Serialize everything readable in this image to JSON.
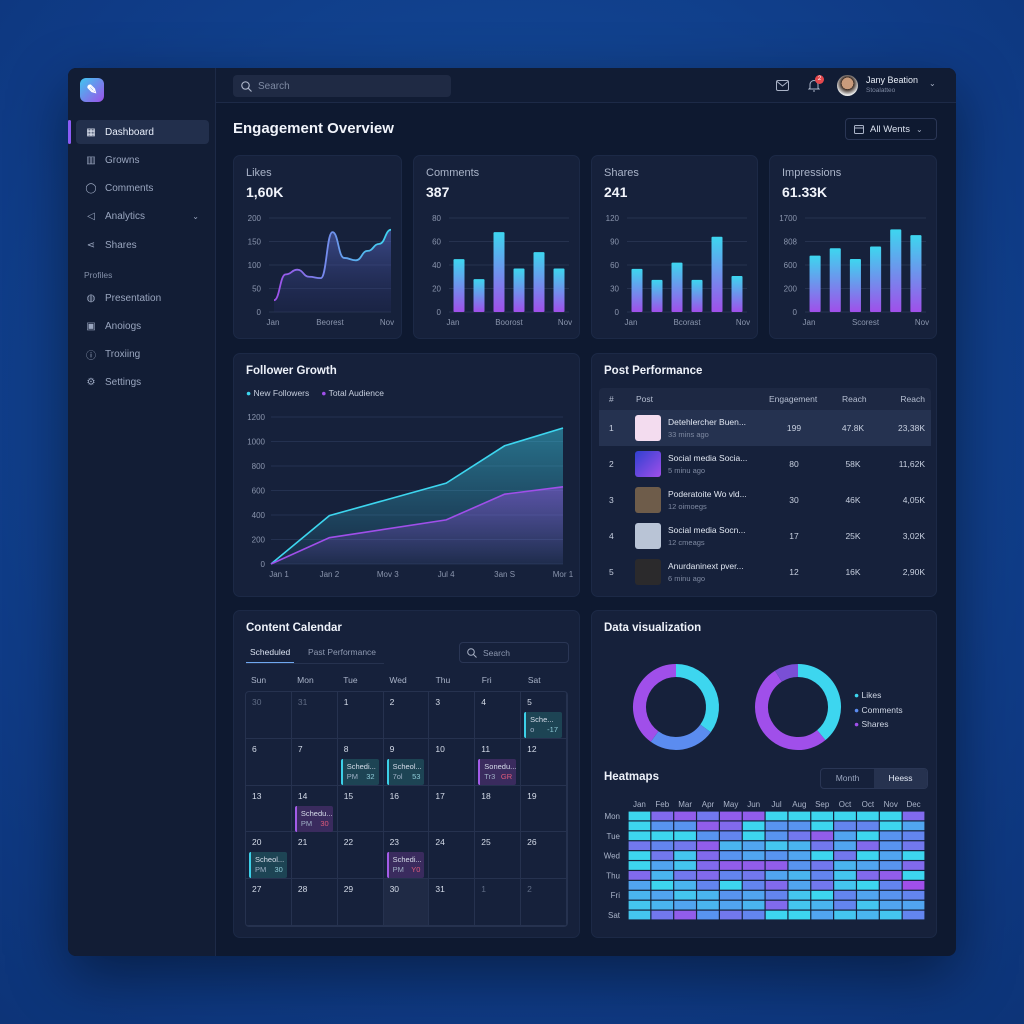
{
  "colors": {
    "cyan": "#3dd6ef",
    "blue": "#5b8cf0",
    "purple": "#a04fea",
    "accent": "#8b5cf6",
    "badge": "#e5484d"
  },
  "sidebar": {
    "logo_icon": "feather-icon",
    "items": [
      {
        "label": "Dashboard",
        "icon": "grid-icon",
        "active": true
      },
      {
        "label": "Growns",
        "icon": "bar-chart-icon"
      },
      {
        "label": "Comments",
        "icon": "chat-bubble-icon"
      },
      {
        "label": "Analytics",
        "icon": "megaphone-icon",
        "has_chevron": true
      },
      {
        "label": "Shares",
        "icon": "share-icon"
      }
    ],
    "section_label": "Profiles",
    "profile_items": [
      {
        "label": "Presentation",
        "icon": "globe-icon"
      },
      {
        "label": "Anoiogs",
        "icon": "image-icon"
      },
      {
        "label": "Troxiing",
        "icon": "info-icon"
      },
      {
        "label": "Settings",
        "icon": "gear-icon"
      }
    ]
  },
  "topbar": {
    "search_placeholder": "Search",
    "notification_count": "2",
    "user_name": "Jany Beation",
    "user_role": "Stoalatteo"
  },
  "page": {
    "title": "Engagement Overview",
    "filter_label": "All Wents"
  },
  "kpis": [
    {
      "label": "Likes",
      "value": "1,60K",
      "chart": {
        "type": "area",
        "ylim": [
          0,
          200
        ],
        "yticks": [
          "0",
          "50",
          "100",
          "150",
          "200"
        ],
        "xticks": [
          "Jan",
          "Beorest",
          "Nov"
        ],
        "values": [
          25,
          80,
          90,
          75,
          72,
          170,
          115,
          110,
          130,
          145,
          175
        ]
      }
    },
    {
      "label": "Comments",
      "value": "387",
      "chart": {
        "type": "bar",
        "ylim": [
          0,
          80
        ],
        "yticks": [
          "0",
          "20",
          "40",
          "60",
          "80"
        ],
        "xticks": [
          "Jan",
          "Boorost",
          "Nov"
        ],
        "values": [
          45,
          28,
          68,
          37,
          51,
          37
        ]
      }
    },
    {
      "label": "Shares",
      "value": "241",
      "chart": {
        "type": "bar",
        "ylim": [
          0,
          120
        ],
        "yticks": [
          "0",
          "30",
          "60",
          "90",
          "120"
        ],
        "xticks": [
          "Jan",
          "Bcorast",
          "Nov"
        ],
        "values": [
          55,
          41,
          63,
          41,
          96,
          46
        ]
      }
    },
    {
      "label": "Impressions",
      "value": "61.33K",
      "chart": {
        "type": "bar",
        "ylim": [
          0,
          1700
        ],
        "yticks": [
          "0",
          "200",
          "600",
          "808",
          "1700"
        ],
        "xticks": [
          "Jan",
          "Scorest",
          "Nov"
        ],
        "values": [
          1020,
          1154,
          959,
          1184,
          1494,
          1390
        ]
      }
    }
  ],
  "follower_growth": {
    "title": "Follower Growth",
    "chart_data": {
      "type": "area",
      "ylim": [
        0,
        1200
      ],
      "yticks": [
        "0",
        "200",
        "400",
        "600",
        "800",
        "1000",
        "1200"
      ],
      "xticks": [
        "Jan 1",
        "Jan 2",
        "Mov 3",
        "Jul 4",
        "3an S",
        "Mor 1"
      ],
      "x_index": [
        0,
        1,
        3,
        4,
        5
      ],
      "series": [
        {
          "name": "New Followers",
          "color": "#3dd6ef",
          "values": [
            0,
            395,
            660,
            965,
            1110
          ]
        },
        {
          "name": "Total Audience",
          "color": "#a04fea",
          "values": [
            0,
            215,
            360,
            570,
            630
          ]
        }
      ]
    }
  },
  "post_performance": {
    "title": "Post Performance",
    "headers": [
      "#",
      "Post",
      "Engagement",
      "Reach",
      "Reach"
    ],
    "rows": [
      {
        "n": "1",
        "title": "Detehlercher Buen...",
        "time": "33 mins ago",
        "engagement": "199",
        "reach": "47.8K",
        "reach2": "23,38K",
        "thumb": "#f3dcef"
      },
      {
        "n": "2",
        "title": "Social media Socia...",
        "time": "5 minu ago",
        "engagement": "80",
        "reach": "58K",
        "reach2": "11,62K",
        "thumb": "#6a3ee0"
      },
      {
        "n": "3",
        "title": "Poderatoite Wo vld...",
        "time": "12 oimoegs",
        "engagement": "30",
        "reach": "46K",
        "reach2": "4,05K",
        "thumb": "#6e5c4a"
      },
      {
        "n": "4",
        "title": "Social media Socn...",
        "time": "12 cmeags",
        "engagement": "17",
        "reach": "25K",
        "reach2": "3,02K",
        "thumb": "#b9c4d6"
      },
      {
        "n": "5",
        "title": "Anurdaninext pver...",
        "time": "6 minu ago",
        "engagement": "12",
        "reach": "16K",
        "reach2": "2,90K",
        "thumb": "#2b2a2c"
      }
    ]
  },
  "calendar": {
    "title": "Content Calendar",
    "tabs": [
      "Scheduled",
      "Past Performance"
    ],
    "search_placeholder": "Search",
    "weekdays": [
      "Sun",
      "Mon",
      "Tue",
      "Wed",
      "Thu",
      "Fri",
      "Sat"
    ],
    "days": [
      {
        "d": "30",
        "dim": true
      },
      {
        "d": "31",
        "dim": true
      },
      {
        "d": "1"
      },
      {
        "d": "2"
      },
      {
        "d": "3"
      },
      {
        "d": "4"
      },
      {
        "d": "5",
        "ev": {
          "t": "Sche...",
          "a": "o",
          "n": "-17",
          "k": "c"
        }
      },
      {
        "d": "6"
      },
      {
        "d": "7"
      },
      {
        "d": "8",
        "ev": {
          "t": "Schedi...",
          "a": "PM",
          "n": "32",
          "k": "c"
        }
      },
      {
        "d": "9",
        "ev": {
          "t": "Scheol...",
          "a": "7ol",
          "n": "53",
          "k": "c"
        }
      },
      {
        "d": "10"
      },
      {
        "d": "11",
        "ev": {
          "t": "Sonedu...",
          "a": "Tr3",
          "n": "GR",
          "k": "p"
        }
      },
      {
        "d": "12"
      },
      {
        "d": "13"
      },
      {
        "d": "14",
        "ev": {
          "t": "Schedu...",
          "a": "PM",
          "n": "30",
          "k": "p"
        }
      },
      {
        "d": "15"
      },
      {
        "d": "16"
      },
      {
        "d": "17"
      },
      {
        "d": "18"
      },
      {
        "d": "19"
      },
      {
        "d": "20",
        "ev": {
          "t": "Scheol...",
          "a": "PM",
          "n": "30",
          "k": "c"
        }
      },
      {
        "d": "21"
      },
      {
        "d": "22"
      },
      {
        "d": "23",
        "ev": {
          "t": "Schedi...",
          "a": "PM",
          "n": "Y0",
          "k": "p"
        }
      },
      {
        "d": "24"
      },
      {
        "d": "25"
      },
      {
        "d": "26"
      },
      {
        "d": "27"
      },
      {
        "d": "28"
      },
      {
        "d": "29"
      },
      {
        "d": "30",
        "today": true
      },
      {
        "d": "31"
      },
      {
        "d": "1",
        "dim": true
      },
      {
        "d": "2",
        "dim": true
      }
    ]
  },
  "data_viz": {
    "title": "Data visualization",
    "legend": [
      "Likes",
      "Comments",
      "Shares"
    ],
    "donuts": [
      {
        "values": [
          35,
          25,
          40
        ],
        "colors": [
          "#3dd6ef",
          "#5b8cf0",
          "#a04fea"
        ]
      },
      {
        "values": [
          39,
          52,
          9
        ],
        "colors": [
          "#3dd6ef",
          "#a04fea",
          "#7a4fd6"
        ]
      }
    ]
  },
  "heatmap": {
    "title": "Heatmaps",
    "toggle": [
      "Month",
      "Heess"
    ],
    "active_toggle": 1,
    "months": [
      "Jan",
      "Feb",
      "Mar",
      "Apr",
      "May",
      "Jun",
      "Jul",
      "Aug",
      "Sep",
      "Oct",
      "Oct",
      "Nov",
      "Dec"
    ],
    "row_labels": [
      "Mon",
      "",
      "Tue",
      "",
      "Wed",
      "",
      "Thu",
      "",
      "Fri",
      "",
      "Sat"
    ],
    "values": [
      [
        9,
        2,
        1,
        3,
        1,
        1,
        9,
        9,
        9,
        9,
        9,
        9,
        2
      ],
      [
        9,
        5,
        5,
        1,
        2,
        9,
        5,
        5,
        9,
        4,
        4,
        9,
        6
      ],
      [
        9,
        9,
        9,
        5,
        4,
        9,
        5,
        3,
        1,
        6,
        9,
        5,
        4
      ],
      [
        3,
        4,
        3,
        1,
        7,
        6,
        8,
        7,
        3,
        6,
        2,
        5,
        3
      ],
      [
        9,
        3,
        8,
        2,
        5,
        6,
        5,
        6,
        9,
        3,
        9,
        6,
        9
      ],
      [
        9,
        6,
        8,
        2,
        1,
        1,
        1,
        5,
        3,
        7,
        6,
        5,
        2
      ],
      [
        2,
        7,
        3,
        2,
        4,
        3,
        6,
        7,
        4,
        8,
        2,
        1,
        9
      ],
      [
        6,
        9,
        7,
        4,
        9,
        4,
        2,
        6,
        3,
        8,
        9,
        4,
        0
      ],
      [
        7,
        6,
        8,
        7,
        5,
        6,
        4,
        8,
        9,
        4,
        6,
        5,
        4
      ],
      [
        8,
        7,
        6,
        7,
        6,
        7,
        2,
        8,
        7,
        4,
        8,
        6,
        6
      ],
      [
        8,
        3,
        1,
        5,
        3,
        4,
        9,
        9,
        6,
        8,
        7,
        8,
        4
      ]
    ]
  }
}
